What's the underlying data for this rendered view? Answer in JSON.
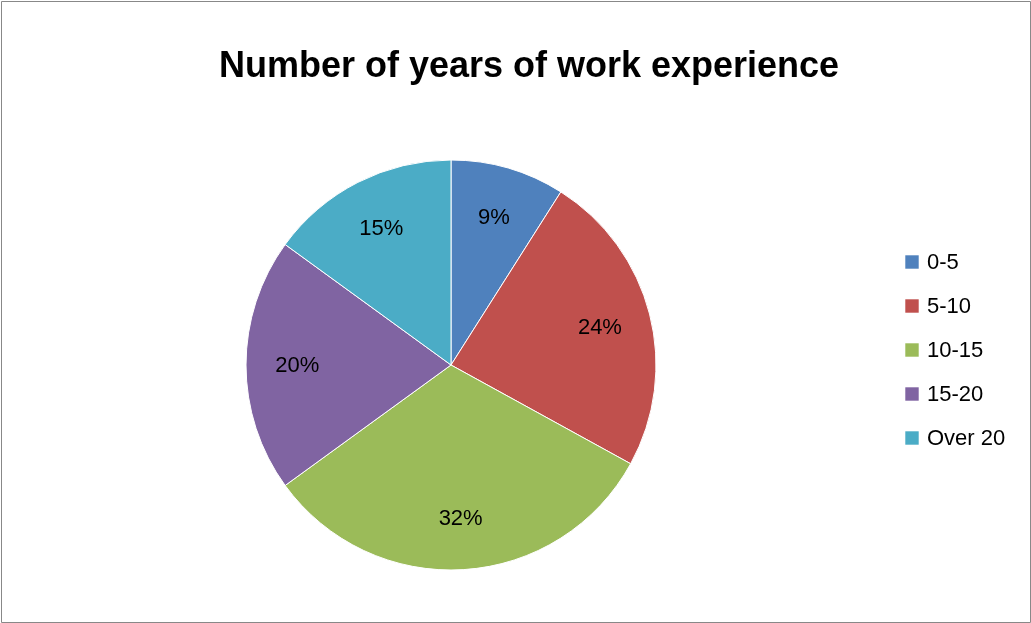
{
  "chart_data": {
    "type": "pie",
    "title": "Number of years of work experience",
    "categories": [
      "0-5",
      "5-10",
      "10-15",
      "15-20",
      "Over 20"
    ],
    "values": [
      9,
      24,
      32,
      20,
      15
    ],
    "value_labels": [
      "9%",
      "24%",
      "32%",
      "20%",
      "15%"
    ],
    "colors": [
      "#4f81bd",
      "#c0504d",
      "#9bbb59",
      "#8064a2",
      "#4bacc6"
    ],
    "legend": "right"
  }
}
